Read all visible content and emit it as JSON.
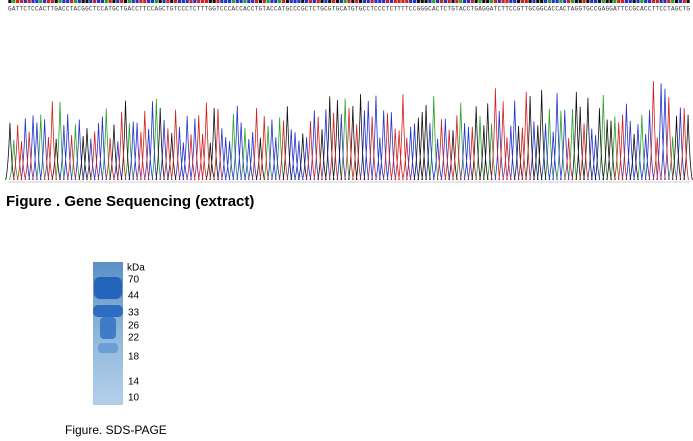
{
  "sequencing": {
    "sequence": "GATTCTCCACTTGACCTACGGCTCCATGCTGACCTTCCAGCTGTCCCTCTTTGGTCCCACCACCTGTACCATGCCCGCTCTGCGTGCATGTGCCTCCCTCTTTTCCGGGCACTCTGTACCTGAGGATCTTCCGTTGCGGCACCACTAGGTGCCGAGGATTCCGCACCTTCCTAGCTG",
    "caption": "Figure . Gene Sequencing (extract)"
  },
  "gel": {
    "unit": "kDa",
    "markers": [
      "70",
      "44",
      "33",
      "26",
      "22",
      "18",
      "14",
      "10"
    ],
    "caption": "Figure. SDS-PAGE"
  }
}
